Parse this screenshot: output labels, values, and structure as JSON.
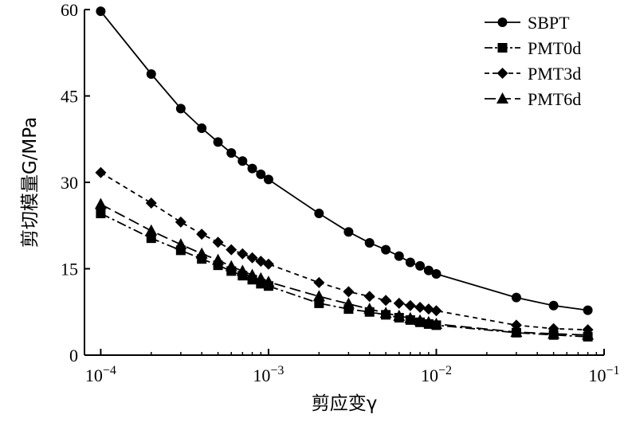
{
  "chart_data": {
    "type": "line",
    "xscale": "log",
    "xlabel": "剪应变γ",
    "ylabel": "剪切模量G/MPa",
    "xlim": [
      8e-05,
      0.1
    ],
    "ylim": [
      0,
      60
    ],
    "x_ticks": [
      {
        "value": 0.0001,
        "base": "10",
        "exp": "−4"
      },
      {
        "value": 0.001,
        "base": "10",
        "exp": "−3"
      },
      {
        "value": 0.01,
        "base": "10",
        "exp": "−2"
      },
      {
        "value": 0.1,
        "base": "10",
        "exp": "−1"
      }
    ],
    "y_ticks": [
      {
        "value": 0,
        "label": "0"
      },
      {
        "value": 15,
        "label": "15"
      },
      {
        "value": 30,
        "label": "30"
      },
      {
        "value": 45,
        "label": "45"
      },
      {
        "value": 60,
        "label": "60"
      }
    ],
    "legend_position": "top-right",
    "grid": false,
    "series": [
      {
        "name": "SBPT",
        "marker": "circle",
        "dash": "solid",
        "x": [
          0.0001,
          0.0002,
          0.0003,
          0.0004,
          0.0005,
          0.0006,
          0.0007,
          0.0008,
          0.0009,
          0.001,
          0.002,
          0.003,
          0.004,
          0.005,
          0.006,
          0.007,
          0.008,
          0.009,
          0.01,
          0.03,
          0.05,
          0.08
        ],
        "y": [
          59.7,
          48.8,
          42.8,
          39.4,
          37.0,
          35.1,
          33.7,
          32.4,
          31.4,
          30.5,
          24.6,
          21.4,
          19.5,
          18.3,
          17.2,
          16.1,
          15.5,
          14.7,
          14.1,
          10.0,
          8.6,
          7.8
        ]
      },
      {
        "name": "PMT0d",
        "marker": "square",
        "dash": "dashdot",
        "x": [
          0.0001,
          0.0002,
          0.0003,
          0.0004,
          0.0005,
          0.0006,
          0.0007,
          0.0008,
          0.0009,
          0.001,
          0.002,
          0.003,
          0.004,
          0.005,
          0.006,
          0.007,
          0.008,
          0.009,
          0.01,
          0.03,
          0.05,
          0.08
        ],
        "y": [
          24.6,
          20.3,
          18.2,
          16.7,
          15.6,
          14.6,
          13.8,
          13.1,
          12.4,
          12.0,
          9.0,
          8.0,
          7.5,
          7.0,
          6.5,
          6.1,
          5.7,
          5.4,
          5.2,
          3.9,
          3.5,
          3.2
        ]
      },
      {
        "name": "PMT3d",
        "marker": "diamond",
        "dash": "dashed",
        "x": [
          0.0001,
          0.0002,
          0.0003,
          0.0004,
          0.0005,
          0.0006,
          0.0007,
          0.0008,
          0.0009,
          0.001,
          0.002,
          0.003,
          0.004,
          0.005,
          0.006,
          0.007,
          0.008,
          0.009,
          0.01,
          0.03,
          0.05,
          0.08
        ],
        "y": [
          31.7,
          26.4,
          23.1,
          21.0,
          19.6,
          18.3,
          17.6,
          16.9,
          16.3,
          15.8,
          12.6,
          11.0,
          10.2,
          9.5,
          9.0,
          8.6,
          8.3,
          8.0,
          7.7,
          5.2,
          4.6,
          4.4
        ]
      },
      {
        "name": "PMT6d",
        "marker": "triangle",
        "dash": "longdash",
        "x": [
          0.0001,
          0.0002,
          0.0003,
          0.0004,
          0.0005,
          0.0006,
          0.0007,
          0.0008,
          0.0009,
          0.001,
          0.002,
          0.003,
          0.004,
          0.005,
          0.006,
          0.007,
          0.008,
          0.009,
          0.01,
          0.03,
          0.05,
          0.08
        ],
        "y": [
          26.2,
          21.6,
          19.2,
          17.6,
          16.5,
          15.4,
          14.6,
          13.9,
          13.3,
          12.7,
          10.2,
          8.9,
          8.0,
          7.3,
          6.8,
          6.4,
          6.0,
          5.7,
          5.4,
          4.0,
          3.7,
          3.5
        ]
      }
    ]
  }
}
